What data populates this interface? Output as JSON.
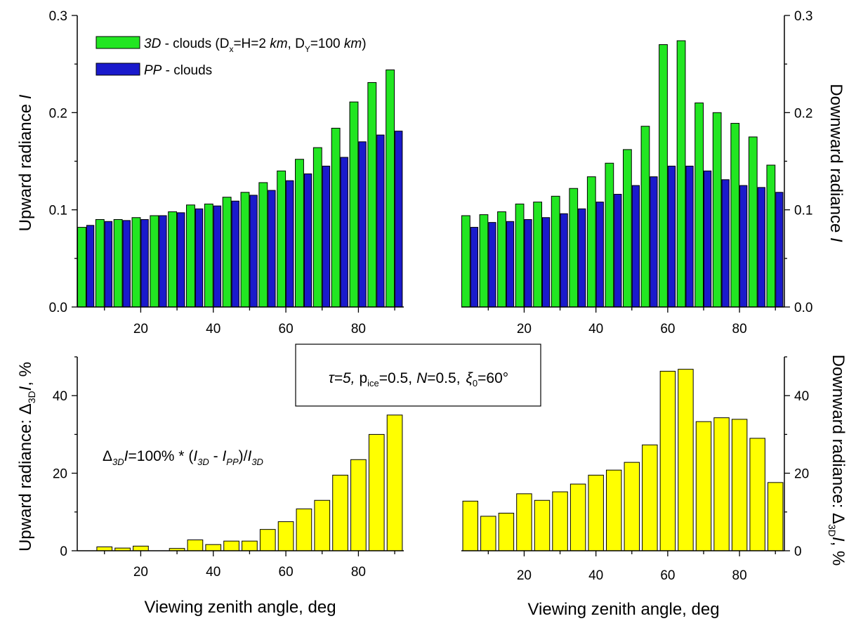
{
  "figure": {
    "x_axis_label": "Viewing zenith angle, deg",
    "params_box": {
      "tau": "τ=5,",
      "pice": "p",
      "pice_sub": "ice",
      "pice_val": "=0.5,",
      "N": "N",
      "N_val": "=0.5,",
      "xi": "ξ",
      "xi_sub": "0",
      "xi_val": "=60°"
    },
    "formula": {
      "delta": "Δ",
      "sub3d": "3D",
      "I": "I",
      "eq": "=100% * (",
      "I3d": "I",
      "I3d_sub": "3D",
      "minus": " - ",
      "Ipp": "I",
      "Ipp_sub": "PP",
      "close": ")/",
      "Iden": "I",
      "Iden_sub": "3D"
    },
    "legend": {
      "item1_italic": "3D",
      "item1_rest": " - clouds (D",
      "item1_dx_sub": "x",
      "item1_mid": "=H=2 ",
      "item1_km": "km",
      "item1_dy": ", D",
      "item1_dy_sub": "Y",
      "item1_end": "=100 ",
      "item1_km2": "km",
      "item1_close": ")",
      "item1_color": "#22e622",
      "item2_italic": "PP",
      "item2_rest": " - clouds",
      "item2_color": "#1a1acc"
    },
    "labels": {
      "up_rad": "Upward radiance ",
      "up_rad_I": "I",
      "down_rad": "Downward radiance ",
      "down_rad_I": "I",
      "up_delta": "Upward radiance: Δ",
      "up_delta_sub": "3D",
      "up_delta_I": "I",
      "up_delta_end": ", %",
      "down_delta": "Downward radiance: Δ",
      "down_delta_sub": "3D",
      "down_delta_I": "I",
      "down_delta_end": ", %"
    }
  },
  "chart_data": [
    {
      "id": "upward-radiance",
      "type": "bar",
      "ylabel": "Upward radiance I",
      "xlabel": "",
      "ylim": [
        0,
        0.3
      ],
      "yticks": [
        0.0,
        0.1,
        0.2,
        0.3
      ],
      "ytick_labels": [
        "0.0",
        "0.1",
        "0.2",
        "0.3"
      ],
      "xticks": [
        20,
        40,
        60,
        80
      ],
      "x": [
        5,
        10,
        15,
        20,
        25,
        30,
        35,
        40,
        45,
        50,
        55,
        60,
        65,
        70,
        75,
        80,
        85,
        90
      ],
      "series": [
        {
          "name": "3D - clouds",
          "color": "#22e622",
          "values": [
            0.082,
            0.09,
            0.09,
            0.092,
            0.094,
            0.098,
            0.105,
            0.106,
            0.113,
            0.118,
            0.128,
            0.14,
            0.152,
            0.164,
            0.184,
            0.211,
            0.231,
            0.244
          ]
        },
        {
          "name": "PP - clouds",
          "color": "#1a1acc",
          "values": [
            0.084,
            0.088,
            0.089,
            0.09,
            0.094,
            0.097,
            0.101,
            0.104,
            0.109,
            0.115,
            0.12,
            0.13,
            0.137,
            0.145,
            0.154,
            0.17,
            0.177,
            0.181
          ]
        }
      ]
    },
    {
      "id": "downward-radiance",
      "type": "bar",
      "ylabel": "Downward radiance I",
      "xlabel": "",
      "ylim": [
        0,
        0.3
      ],
      "yticks": [
        0.0,
        0.1,
        0.2,
        0.3
      ],
      "ytick_labels": [
        "0.0",
        "0.1",
        "0.2",
        "0.3"
      ],
      "xticks": [
        20,
        40,
        60,
        80
      ],
      "x": [
        5,
        10,
        15,
        20,
        25,
        30,
        35,
        40,
        45,
        50,
        55,
        60,
        65,
        70,
        75,
        80,
        85,
        90
      ],
      "series": [
        {
          "name": "3D - clouds",
          "color": "#22e622",
          "values": [
            0.094,
            0.095,
            0.098,
            0.106,
            0.108,
            0.114,
            0.122,
            0.134,
            0.148,
            0.162,
            0.186,
            0.27,
            0.274,
            0.21,
            0.2,
            0.189,
            0.175,
            0.146
          ]
        },
        {
          "name": "PP - clouds",
          "color": "#1a1acc",
          "values": [
            0.082,
            0.087,
            0.088,
            0.09,
            0.092,
            0.096,
            0.101,
            0.108,
            0.116,
            0.125,
            0.134,
            0.145,
            0.145,
            0.14,
            0.131,
            0.125,
            0.123,
            0.118
          ]
        }
      ]
    },
    {
      "id": "upward-delta",
      "type": "bar",
      "ylabel": "Upward radiance: Δ3D I, %",
      "xlabel": "Viewing zenith angle, deg",
      "ylim": [
        0,
        50
      ],
      "yticks": [
        0,
        20,
        40
      ],
      "ytick_labels": [
        "0",
        "20",
        "40"
      ],
      "xticks": [
        20,
        40,
        60,
        80
      ],
      "x": [
        10,
        15,
        20,
        25,
        30,
        35,
        40,
        45,
        50,
        55,
        60,
        65,
        70,
        75,
        80,
        85,
        90
      ],
      "series": [
        {
          "name": "Δ3D I",
          "color": "#ffff00",
          "values": [
            1.0,
            0.7,
            1.2,
            0.0,
            0.6,
            2.8,
            1.6,
            2.5,
            2.5,
            5.5,
            7.5,
            10.8,
            13.0,
            19.5,
            23.5,
            30.0,
            35.0
          ]
        }
      ]
    },
    {
      "id": "downward-delta",
      "type": "bar",
      "ylabel": "Downward radiance: Δ3D I, %",
      "xlabel": "Viewing zenith angle, deg",
      "ylim": [
        0,
        50
      ],
      "yticks": [
        0,
        20,
        40
      ],
      "ytick_labels": [
        "0",
        "20",
        "40"
      ],
      "xticks": [
        20,
        40,
        60,
        80
      ],
      "x": [
        5,
        10,
        15,
        20,
        25,
        30,
        35,
        40,
        45,
        50,
        55,
        60,
        65,
        70,
        75,
        80,
        85,
        90
      ],
      "series": [
        {
          "name": "Δ3D I",
          "color": "#ffff00",
          "values": [
            12.8,
            8.9,
            9.7,
            14.7,
            13.0,
            15.2,
            17.2,
            19.5,
            20.8,
            22.8,
            27.3,
            46.3,
            46.8,
            33.3,
            34.3,
            33.9,
            29.0,
            17.6
          ]
        }
      ]
    }
  ]
}
